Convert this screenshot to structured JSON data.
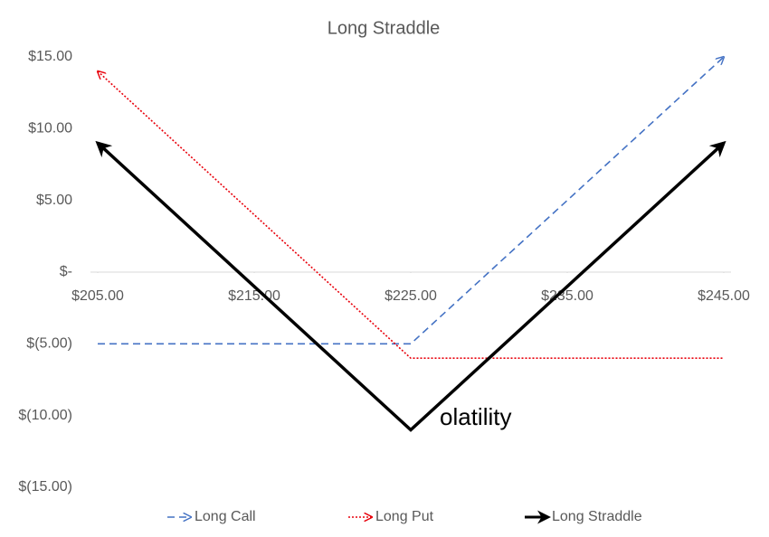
{
  "chart_data": {
    "type": "line",
    "title": "Long Straddle",
    "x": [
      205,
      225,
      245
    ],
    "series": [
      {
        "name": "Long Call",
        "color": "#4472c4",
        "line_style": "dashed",
        "arrows": "end",
        "values": [
          -5,
          -5,
          15
        ]
      },
      {
        "name": "Long Put",
        "color": "#e8000b",
        "line_style": "dotted",
        "arrows": "start",
        "values": [
          14,
          -6,
          -6
        ]
      },
      {
        "name": "Long Straddle",
        "color": "#000000",
        "line_style": "solid",
        "arrows": "both",
        "values": [
          9,
          -11,
          9
        ]
      }
    ],
    "xlim": [
      205,
      245
    ],
    "xticks": [
      {
        "value": 205,
        "label": "$205.00"
      },
      {
        "value": 215,
        "label": "$215.00"
      },
      {
        "value": 225,
        "label": "$225.00"
      },
      {
        "value": 235,
        "label": "$235.00"
      },
      {
        "value": 245,
        "label": "$245.00"
      }
    ],
    "ylim": [
      -15,
      15
    ],
    "yticks": [
      {
        "value": 15,
        "label": "$15.00"
      },
      {
        "value": 10,
        "label": "$10.00"
      },
      {
        "value": 5,
        "label": "$5.00"
      },
      {
        "value": 0,
        "label": "$-"
      },
      {
        "value": -5,
        "label": "$(5.00)"
      },
      {
        "value": -10,
        "label": "$(10.00)"
      },
      {
        "value": -15,
        "label": "$(15.00)"
      }
    ],
    "annotation": "olatility",
    "legend": "bottom"
  }
}
